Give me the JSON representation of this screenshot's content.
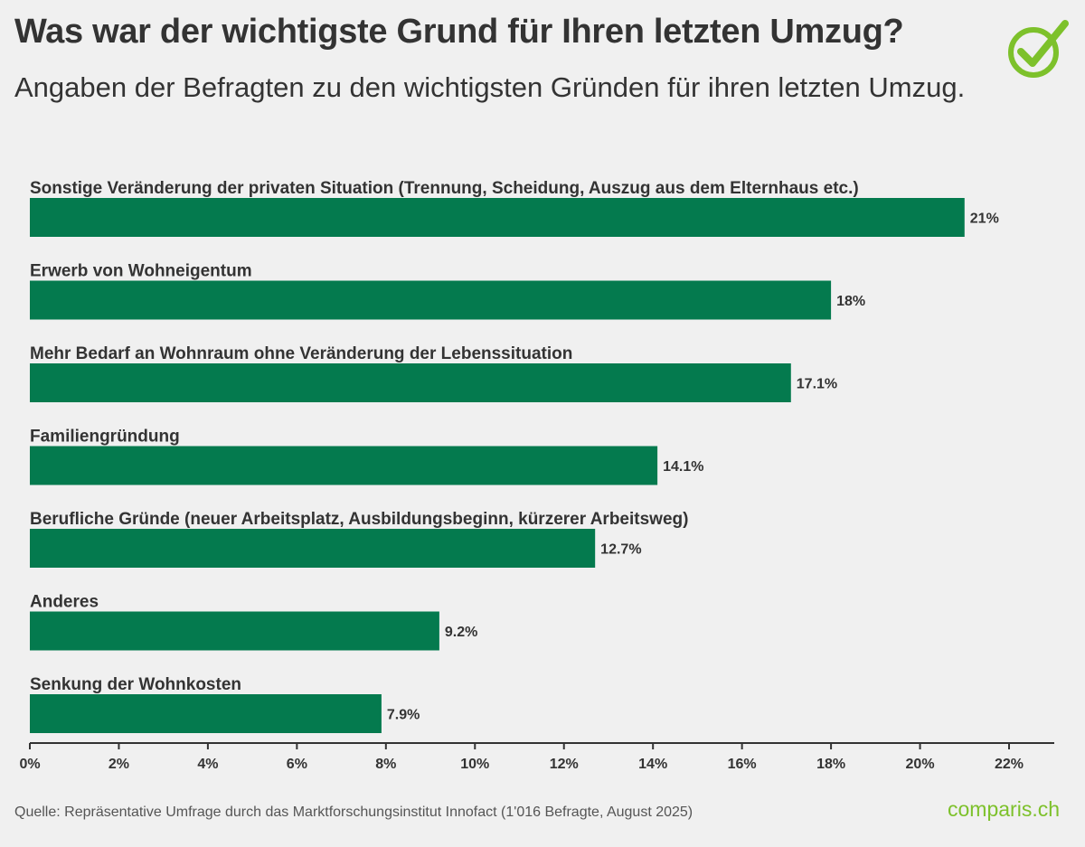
{
  "header": {
    "title": "Was war der wichtigste Grund für Ihren letzten Umzug?",
    "subtitle": "Angaben der Befragten zu den wichtigsten Gründen für ihren letzten Umzug."
  },
  "footer": {
    "source": "Quelle: Repräsentative Umfrage durch das Marktforschungsinstitut Innofact (1'016 Befragte, August 2025)",
    "brand": "comparis.ch"
  },
  "colors": {
    "bar": "#047a4e",
    "brand": "#7dc12b",
    "text": "#333333",
    "background": "#f0f0f0"
  },
  "chart_data": {
    "type": "bar",
    "orientation": "horizontal",
    "title": "Was war der wichtigste Grund für Ihren letzten Umzug?",
    "subtitle": "Angaben der Befragten zu den wichtigsten Gründen für ihren letzten Umzug.",
    "categories": [
      "Sonstige Veränderung der privaten Situation (Trennung, Scheidung, Auszug aus dem Elternhaus etc.)",
      "Erwerb von Wohneigentum",
      "Mehr Bedarf an Wohnraum ohne Veränderung der Lebenssituation",
      "Familiengründung",
      "Berufliche Gründe (neuer Arbeitsplatz, Ausbildungsbeginn, kürzerer Arbeitsweg)",
      "Anderes",
      "Senkung der Wohnkosten"
    ],
    "values": [
      21,
      18,
      17.1,
      14.1,
      12.7,
      9.2,
      7.9
    ],
    "value_labels": [
      "21%",
      "18%",
      "17.1%",
      "14.1%",
      "12.7%",
      "9.2%",
      "7.9%"
    ],
    "xlim": [
      0,
      23
    ],
    "xticks": [
      0,
      2,
      4,
      6,
      8,
      10,
      12,
      14,
      16,
      18,
      20,
      22
    ],
    "xtick_labels": [
      "0%",
      "2%",
      "4%",
      "6%",
      "8%",
      "10%",
      "12%",
      "14%",
      "16%",
      "18%",
      "20%",
      "22%"
    ],
    "xlabel": "",
    "ylabel": "",
    "grid": false,
    "legend": "none"
  }
}
